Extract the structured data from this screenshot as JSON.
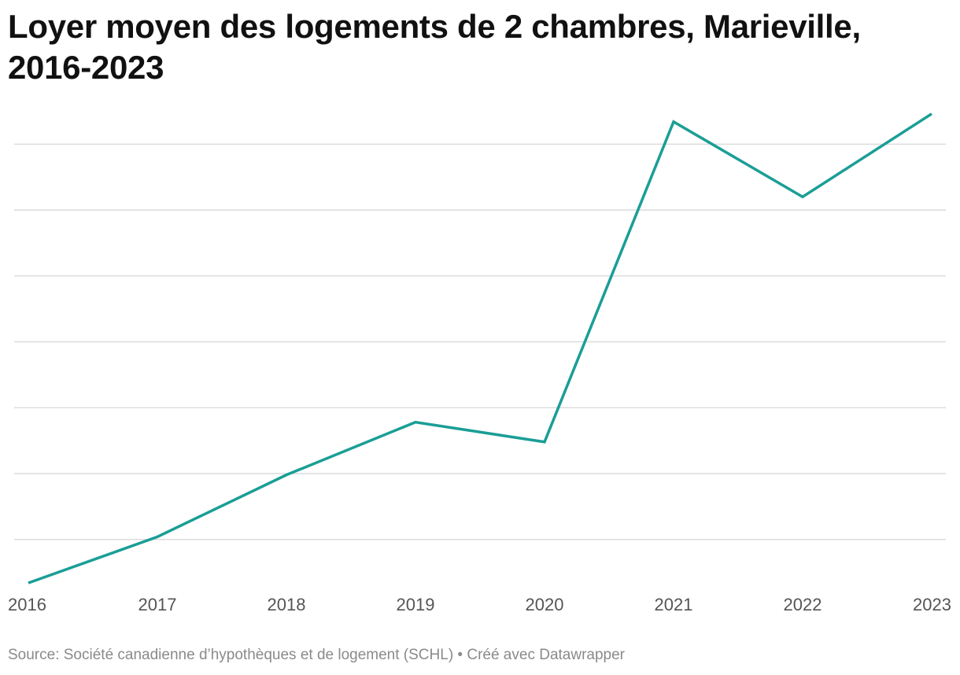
{
  "chart_data": {
    "type": "line",
    "title": "Loyer moyen des logements de 2 chambres, Marieville, 2016-2023",
    "x": [
      "2016",
      "2017",
      "2018",
      "2019",
      "2020",
      "2021",
      "2022",
      "2023"
    ],
    "series": [
      {
        "values": [
          460,
          495,
          542,
          582,
          567,
          810,
          753,
          816
        ],
        "color": "#1a9e96"
      }
    ],
    "ylim": [
      460,
      820
    ],
    "gridlines": [
      493,
      543,
      593,
      643,
      693,
      743,
      793
    ],
    "y_tick_labels_shown": false,
    "grid": true,
    "legend": "none"
  },
  "footer": {
    "source": "Source: Société canadienne d’hypothèques et de logement (SCHL) • Créé avec Datawrapper"
  }
}
